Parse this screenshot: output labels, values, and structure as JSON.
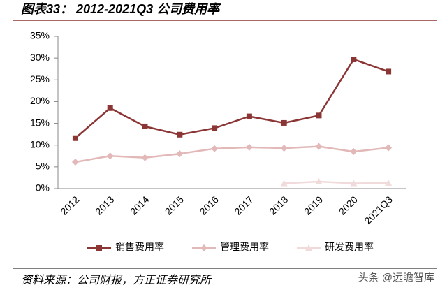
{
  "chart_data": {
    "type": "line",
    "title": "图表33： 2012-2021Q3 公司费用率",
    "categories": [
      "2012",
      "2013",
      "2014",
      "2015",
      "2016",
      "2017",
      "2018",
      "2019",
      "2020",
      "2021Q3"
    ],
    "series": [
      {
        "name": "销售费用率",
        "color": "#8b3535",
        "marker": "square",
        "values": [
          11.6,
          18.5,
          14.3,
          12.4,
          13.9,
          16.6,
          15.1,
          16.8,
          29.7,
          26.9
        ]
      },
      {
        "name": "管理费用率",
        "color": "#e2b8b8",
        "marker": "diamond",
        "values": [
          6.1,
          7.5,
          7.1,
          8.0,
          9.2,
          9.5,
          9.3,
          9.7,
          8.5,
          9.4
        ]
      },
      {
        "name": "研发费用率",
        "color": "#f1dada",
        "marker": "triangle",
        "values": [
          null,
          null,
          null,
          null,
          null,
          null,
          1.2,
          1.6,
          1.2,
          1.3
        ]
      }
    ],
    "ylim": [
      0,
      35
    ],
    "yticks": [
      {
        "value": 0,
        "label": "0%"
      },
      {
        "value": 5,
        "label": "5%"
      },
      {
        "value": 10,
        "label": "10%"
      },
      {
        "value": 15,
        "label": "15%"
      },
      {
        "value": 20,
        "label": "20%"
      },
      {
        "value": 25,
        "label": "25%"
      },
      {
        "value": 30,
        "label": "30%"
      },
      {
        "value": 35,
        "label": "35%"
      }
    ],
    "grid": false,
    "legend": "bottom",
    "source": "资料来源：公司财报，方正证券研究所",
    "watermark": "头条 @远瞻智库"
  }
}
